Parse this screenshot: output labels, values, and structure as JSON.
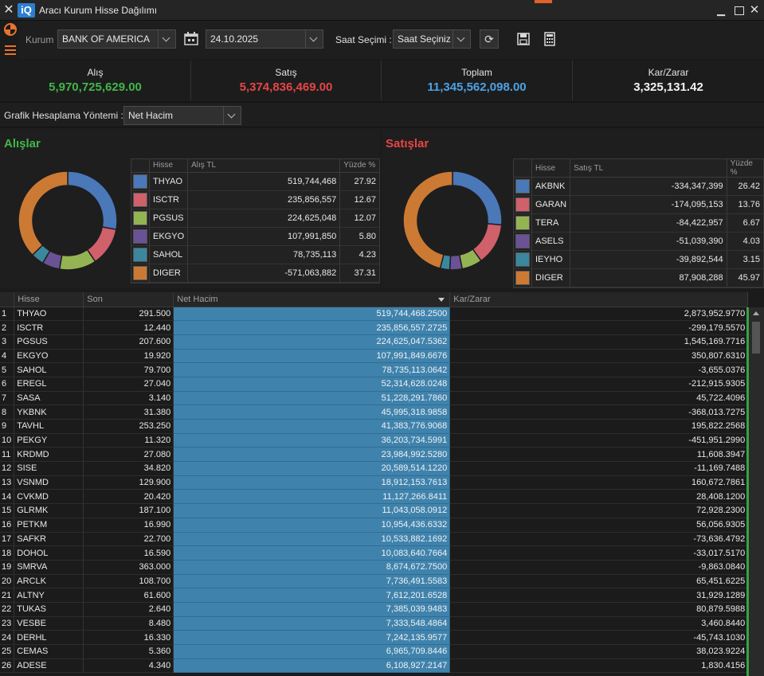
{
  "window": {
    "title": "Aracı Kurum Hisse Dağılımı",
    "logo": "iQ",
    "close_glyph": "✕",
    "min_glyph": "▁",
    "close_btn_glyph": "✕"
  },
  "toolbar": {
    "kurum_label": "Kurum",
    "kurum_value": "BANK OF AMERICA",
    "date_value": "24.10.2025",
    "saat_label": "Saat Seçimi :",
    "saat_value": "Saat Seçiniz",
    "refresh_glyph": "⟳"
  },
  "summary": {
    "alis_label": "Alış",
    "alis_value": "5,970,725,629.00",
    "satis_label": "Satış",
    "satis_value": "5,374,836,469.00",
    "toplam_label": "Toplam",
    "toplam_value": "11,345,562,098.00",
    "karzarar_label": "Kar/Zarar",
    "karzarar_value": "3,325,131.42"
  },
  "method": {
    "label": "Grafik Hesaplama Yöntemi :",
    "value": "Net Hacim"
  },
  "colors": {
    "green": "#41b649",
    "red": "#e64546",
    "blue": "#4aa3e6",
    "s1": "#4a78b8",
    "s2": "#d0606a",
    "s3": "#94b454",
    "s4": "#6a5296",
    "s5": "#3a879e",
    "s6": "#cc7a33"
  },
  "alislar": {
    "title": "Alışlar",
    "col_hisse": "Hisse",
    "col_tl": "Alış TL",
    "col_pct": "Yüzde %",
    "rows": [
      {
        "hisse": "THYAO",
        "tl": "519,744,468",
        "pct": "27.92"
      },
      {
        "hisse": "ISCTR",
        "tl": "235,856,557",
        "pct": "12.67"
      },
      {
        "hisse": "PGSUS",
        "tl": "224,625,048",
        "pct": "12.07"
      },
      {
        "hisse": "EKGYO",
        "tl": "107,991,850",
        "pct": "5.80"
      },
      {
        "hisse": "SAHOL",
        "tl": "78,735,113",
        "pct": "4.23"
      },
      {
        "hisse": "DIGER",
        "tl": "-571,063,882",
        "pct": "37.31"
      }
    ]
  },
  "satislar": {
    "title": "Satışlar",
    "col_hisse": "Hisse",
    "col_tl": "Satış TL",
    "col_pct": "Yüzde %",
    "rows": [
      {
        "hisse": "AKBNK",
        "tl": "-334,347,399",
        "pct": "26.42"
      },
      {
        "hisse": "GARAN",
        "tl": "-174,095,153",
        "pct": "13.76"
      },
      {
        "hisse": "TERA",
        "tl": "-84,422,957",
        "pct": "6.67"
      },
      {
        "hisse": "ASELS",
        "tl": "-51,039,390",
        "pct": "4.03"
      },
      {
        "hisse": "IEYHO",
        "tl": "-39,892,544",
        "pct": "3.15"
      },
      {
        "hisse": "DIGER",
        "tl": "87,908,288",
        "pct": "45.97"
      }
    ]
  },
  "grid": {
    "col_hisse": "Hisse",
    "col_son": "Son",
    "col_nethacim": "Net Hacim",
    "col_karzarar": "Kar/Zarar",
    "rows": [
      {
        "n": "1",
        "hisse": "THYAO",
        "son": "291.500",
        "nh": "519,744,468.2500",
        "kz": "2,873,952.9770"
      },
      {
        "n": "2",
        "hisse": "ISCTR",
        "son": "12.440",
        "nh": "235,856,557.2725",
        "kz": "-299,179.5570"
      },
      {
        "n": "3",
        "hisse": "PGSUS",
        "son": "207.600",
        "nh": "224,625,047.5362",
        "kz": "1,545,169.7716"
      },
      {
        "n": "4",
        "hisse": "EKGYO",
        "son": "19.920",
        "nh": "107,991,849.6676",
        "kz": "350,807.6310"
      },
      {
        "n": "5",
        "hisse": "SAHOL",
        "son": "79.700",
        "nh": "78,735,113.0642",
        "kz": "-3,655.0376"
      },
      {
        "n": "6",
        "hisse": "EREGL",
        "son": "27.040",
        "nh": "52,314,628.0248",
        "kz": "-212,915.9305"
      },
      {
        "n": "7",
        "hisse": "SASA",
        "son": "3.140",
        "nh": "51,228,291.7860",
        "kz": "45,722.4096"
      },
      {
        "n": "8",
        "hisse": "YKBNK",
        "son": "31.380",
        "nh": "45,995,318.9858",
        "kz": "-368,013.7275"
      },
      {
        "n": "9",
        "hisse": "TAVHL",
        "son": "253.250",
        "nh": "41,383,776.9068",
        "kz": "195,822.2568"
      },
      {
        "n": "10",
        "hisse": "PEKGY",
        "son": "11.320",
        "nh": "36,203,734.5991",
        "kz": "-451,951.2990"
      },
      {
        "n": "11",
        "hisse": "KRDMD",
        "son": "27.080",
        "nh": "23,984,992.5280",
        "kz": "11,608.3947"
      },
      {
        "n": "12",
        "hisse": "SISE",
        "son": "34.820",
        "nh": "20,589,514.1220",
        "kz": "-11,169.7488"
      },
      {
        "n": "13",
        "hisse": "VSNMD",
        "son": "129.900",
        "nh": "18,912,153.7613",
        "kz": "160,672.7861"
      },
      {
        "n": "14",
        "hisse": "CVKMD",
        "son": "20.420",
        "nh": "11,127,266.8411",
        "kz": "28,408.1200"
      },
      {
        "n": "15",
        "hisse": "GLRMK",
        "son": "187.100",
        "nh": "11,043,058.0912",
        "kz": "72,928.2300"
      },
      {
        "n": "16",
        "hisse": "PETKM",
        "son": "16.990",
        "nh": "10,954,436.6332",
        "kz": "56,056.9305"
      },
      {
        "n": "17",
        "hisse": "SAFKR",
        "son": "22.700",
        "nh": "10,533,882.1692",
        "kz": "-73,636.4792"
      },
      {
        "n": "18",
        "hisse": "DOHOL",
        "son": "16.590",
        "nh": "10,083,640.7664",
        "kz": "-33,017.5170"
      },
      {
        "n": "19",
        "hisse": "SMRVA",
        "son": "363.000",
        "nh": "8,674,672.7500",
        "kz": "-9,863.0840"
      },
      {
        "n": "20",
        "hisse": "ARCLK",
        "son": "108.700",
        "nh": "7,736,491.5583",
        "kz": "65,451.6225"
      },
      {
        "n": "21",
        "hisse": "ALTNY",
        "son": "61.600",
        "nh": "7,612,201.6528",
        "kz": "31,929.1289"
      },
      {
        "n": "22",
        "hisse": "TUKAS",
        "son": "2.640",
        "nh": "7,385,039.9483",
        "kz": "80,879.5988"
      },
      {
        "n": "23",
        "hisse": "VESBE",
        "son": "8.480",
        "nh": "7,333,548.4864",
        "kz": "3,460.8440"
      },
      {
        "n": "24",
        "hisse": "DERHL",
        "son": "16.330",
        "nh": "7,242,135.9577",
        "kz": "-45,743.1030"
      },
      {
        "n": "25",
        "hisse": "CEMAS",
        "son": "5.360",
        "nh": "6,965,709.8446",
        "kz": "38,023.9224"
      },
      {
        "n": "26",
        "hisse": "ADESE",
        "son": "4.340",
        "nh": "6,108,927.2147",
        "kz": "1,830.4156"
      }
    ]
  }
}
